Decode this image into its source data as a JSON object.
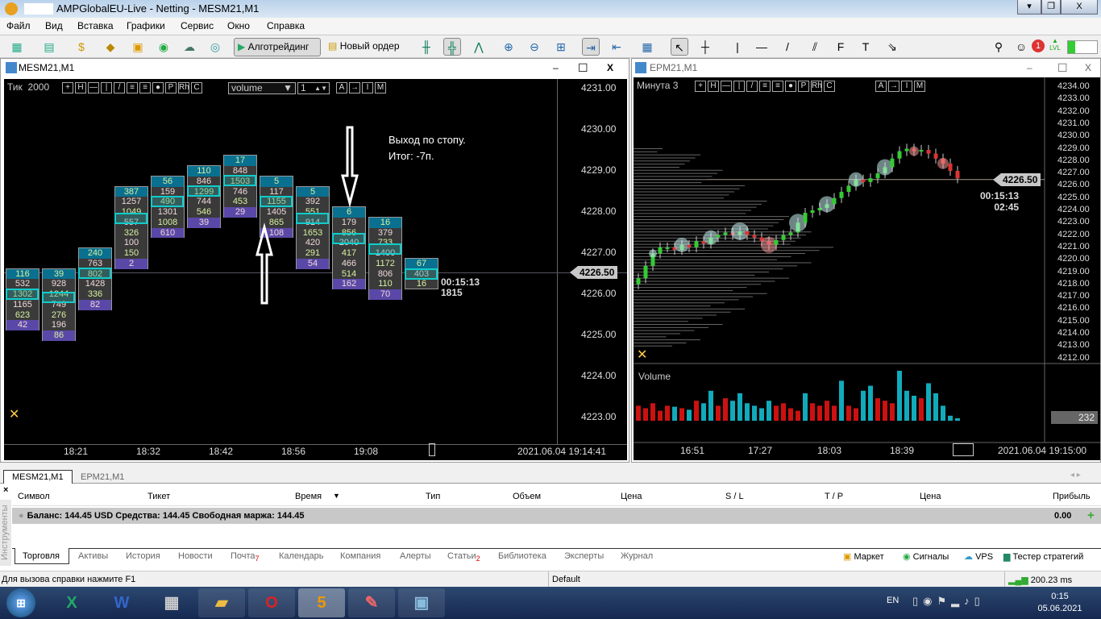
{
  "window": {
    "title": "AMPGlobalEU-Live - Netting - MESM21,M1"
  },
  "menu": [
    "Файл",
    "Вид",
    "Вставка",
    "Графики",
    "Сервис",
    "Окно",
    "Справка"
  ],
  "toolbar": {
    "algo": "Алготрейдинг",
    "new_order": "Новый ордер",
    "notif_count": "1",
    "lvl": "LVL"
  },
  "left_chart": {
    "tab": "MESM21,M1",
    "mode": "Тик",
    "mode_value": "2000",
    "dropdown": "volume",
    "spin": "1",
    "tool_buttons": [
      "+",
      "H",
      "—",
      "|",
      "/",
      "≡",
      "≡",
      "●",
      "P",
      "Rh",
      "C"
    ],
    "tool_buttons2": [
      "A",
      "→",
      "I",
      "M"
    ],
    "price_ticks": [
      "4231.00",
      "4230.00",
      "4229.00",
      "4228.00",
      "4227.00",
      "4226.00",
      "4225.00",
      "4224.00",
      "4223.00"
    ],
    "current_price": "4226.50",
    "timer": "00:15:13",
    "tick_count": "1815",
    "annotation1": "Выход по стопу.",
    "annotation2": "Итог: -7п.",
    "time_ticks": [
      "18:21",
      "18:32",
      "18:42",
      "18:56",
      "19:08"
    ],
    "datetime": "2021.06.04 19:14:41",
    "clusters": [
      {
        "top": 4226.5,
        "v": [
          "116",
          "532",
          "1302",
          "1165",
          "623",
          "42"
        ]
      },
      {
        "top": 4226.5,
        "v": [
          "39",
          "928",
          "1244",
          "749",
          "276",
          "196",
          "86"
        ]
      },
      {
        "top": 4227.0,
        "v": [
          "240",
          "763",
          "802",
          "1428",
          "336",
          "82"
        ]
      },
      {
        "top": 4228.5,
        "v": [
          "387",
          "1257",
          "1049",
          "557",
          "326",
          "100",
          "150",
          "2"
        ]
      },
      {
        "top": 4228.75,
        "v": [
          "56",
          "159",
          "490",
          "1301",
          "1008",
          "610"
        ]
      },
      {
        "top": 4229.0,
        "v": [
          "110",
          "846",
          "1299",
          "744",
          "546",
          "39"
        ]
      },
      {
        "top": 4229.25,
        "v": [
          "17",
          "848",
          "1503",
          "746",
          "453",
          "29"
        ]
      },
      {
        "top": 4228.75,
        "v": [
          "5",
          "117",
          "1155",
          "1405",
          "865",
          "108"
        ]
      },
      {
        "top": 4228.5,
        "v": [
          "5",
          "392",
          "551",
          "914",
          "1653",
          "420",
          "291",
          "54"
        ]
      },
      {
        "top": 4228.0,
        "v": [
          "6",
          "179",
          "856",
          "2040",
          "417",
          "466",
          "514",
          "162"
        ]
      },
      {
        "top": 4227.75,
        "v": [
          "16",
          "379",
          "733",
          "1400",
          "1172",
          "806",
          "110",
          "70"
        ]
      },
      {
        "top": 4226.75,
        "v": [
          "67",
          "403",
          "16"
        ]
      }
    ]
  },
  "right_chart": {
    "tab": "EPM21,M1",
    "mode": "Минута",
    "mode_value": "3",
    "tool_buttons": [
      "+",
      "H",
      "—",
      "|",
      "/",
      "≡",
      "≡",
      "●",
      "P",
      "Rh",
      "C"
    ],
    "tool_buttons2": [
      "A",
      "→",
      "I",
      "M"
    ],
    "price_ticks": [
      "4234.00",
      "4233.00",
      "4232.00",
      "4231.00",
      "4230.00",
      "4229.00",
      "4228.00",
      "4227.00",
      "4226.00",
      "4225.00",
      "4224.00",
      "4223.00",
      "4222.00",
      "4221.00",
      "4220.00",
      "4219.00",
      "4218.00",
      "4217.00",
      "4216.00",
      "4215.00",
      "4214.00",
      "4213.00",
      "4212.00"
    ],
    "current_price": "4226.50",
    "timer": "00:15:13",
    "timer2": "02:45",
    "volume_label": "Volume",
    "volume_value": "232",
    "time_ticks": [
      "16:51",
      "17:27",
      "18:03",
      "18:39"
    ],
    "datetime": "2021.06.04 19:15:00",
    "closes": [
      4218.5,
      4219.5,
      4220.5,
      4221,
      4221,
      4220.8,
      4221.2,
      4221,
      4221.5,
      4221.3,
      4221.8,
      4222,
      4222.2,
      4222,
      4222.3,
      4222,
      4221.8,
      4221.5,
      4221.2,
      4221.6,
      4222,
      4222.2,
      4223,
      4223.8,
      4224,
      4224.2,
      4224.5,
      4225,
      4225.5,
      4226,
      4226.5,
      4226.3,
      4226.6,
      4227,
      4227.5,
      4228.2,
      4228.8,
      4229,
      4228.8,
      4228.9,
      4228.6,
      4228.2,
      4227.8,
      4227.2,
      4226.6
    ],
    "volumes": [
      30,
      25,
      35,
      20,
      30,
      28,
      25,
      22,
      40,
      35,
      60,
      30,
      45,
      40,
      55,
      35,
      30,
      25,
      40,
      30,
      35,
      25,
      20,
      55,
      35,
      30,
      40,
      30,
      80,
      30,
      25,
      60,
      70,
      45,
      40,
      35,
      100,
      60,
      50,
      45,
      75,
      55,
      30,
      10,
      5
    ]
  },
  "bottom": {
    "chart_tabs": [
      "MESM21,M1",
      "EPM21,M1"
    ],
    "side_label": "Инструменты",
    "columns": [
      "Символ",
      "Тикет",
      "Время",
      "Тип",
      "Объем",
      "Цена",
      "S / L",
      "T / P",
      "Цена",
      "Прибыль"
    ],
    "balance": "Баланс: 144.45 USD  Средства: 144.45  Свободная маржа: 144.45",
    "profit": "0.00",
    "tabs": [
      "Торговля",
      "Активы",
      "История",
      "Новости",
      "Почта",
      "Календарь",
      "Компания",
      "Алерты",
      "Статьи",
      "Библиотека",
      "Эксперты",
      "Журнал"
    ],
    "mail_badge": "7",
    "articles_badge": "2",
    "links": [
      "Маркет",
      "Сигналы",
      "VPS",
      "Тестер стратегий"
    ]
  },
  "status": {
    "help": "Для вызова справки нажмите F1",
    "profile": "Default",
    "ping": "200.23 ms"
  },
  "taskbar": {
    "lang": "EN",
    "time": "0:15",
    "date": "05.06.2021"
  }
}
